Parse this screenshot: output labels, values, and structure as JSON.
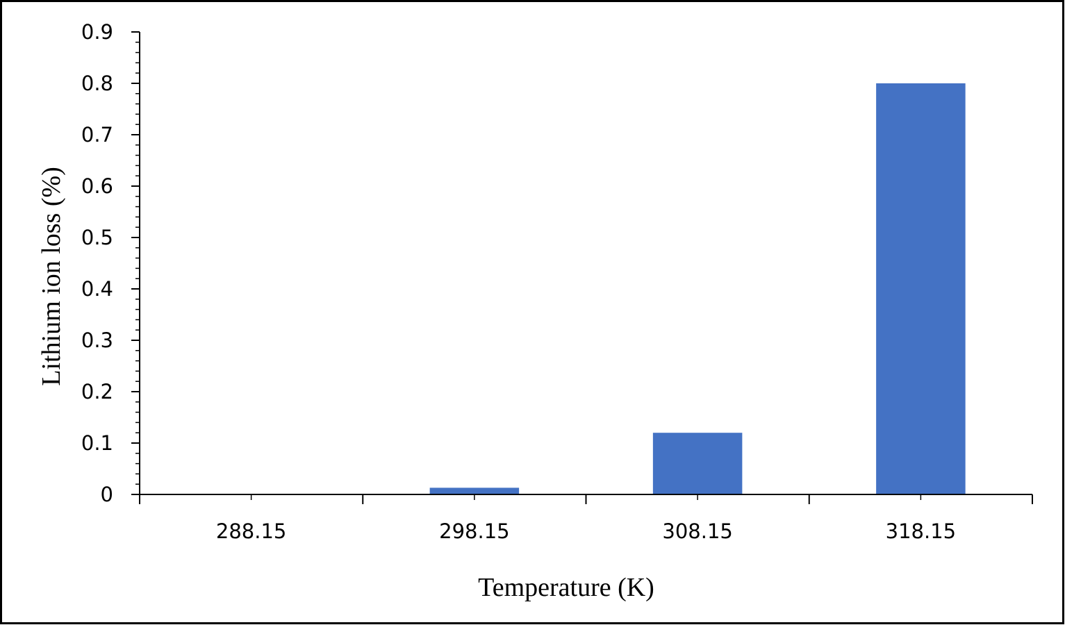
{
  "chart_data": {
    "type": "bar",
    "categories": [
      "288.15",
      "298.15",
      "308.15",
      "318.15"
    ],
    "values": [
      0,
      0.013,
      0.12,
      0.8
    ],
    "title": "",
    "xlabel": "Temperature (K)",
    "ylabel": "Lithium ion loss (%)",
    "ylim": [
      0,
      0.9
    ],
    "yticks": [
      "0",
      "0.1",
      "0.2",
      "0.3",
      "0.4",
      "0.5",
      "0.6",
      "0.7",
      "0.8",
      "0.9"
    ],
    "minor_ticks_per_major": 5,
    "grid": false,
    "legend": "none",
    "bar_color": "#4472C4",
    "axis_color": "#000000",
    "frame_color": "#000000"
  }
}
